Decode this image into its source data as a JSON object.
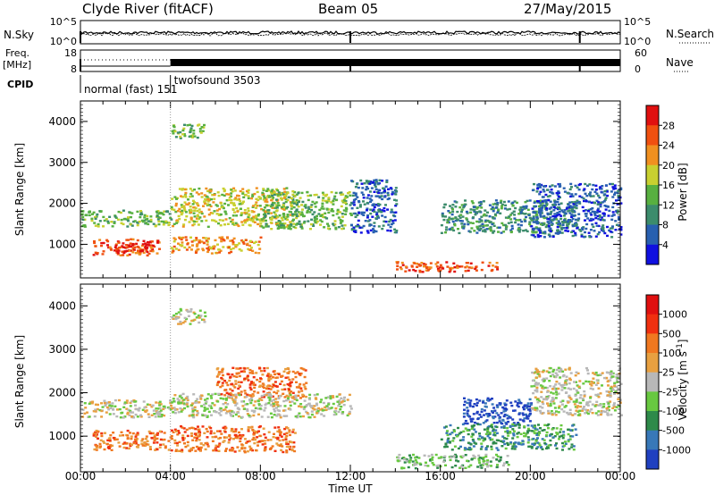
{
  "header": {
    "station": "Clyde River (fitACF)",
    "beam": "Beam 05",
    "date": "27/May/2015"
  },
  "top_panel": {
    "left_label": "N.Sky",
    "right_label": "N.Search",
    "left_ticks": [
      "10^5",
      "10^0"
    ],
    "right_ticks": [
      "10^5",
      "10^0"
    ]
  },
  "freq_panel": {
    "left_label_1": "Freq.",
    "left_label_2": "[MHz]",
    "right_label": "Nave",
    "left_ticks": [
      "18",
      "8"
    ],
    "right_ticks": [
      "60",
      "0"
    ]
  },
  "cpid": {
    "label": "CPID",
    "modes": [
      {
        "name": "normal (fast)  151",
        "start_h": 0
      },
      {
        "name": "twofsound  3503",
        "start_h": 4
      }
    ]
  },
  "axes": {
    "xlabel": "Time UT",
    "x_ticks": [
      "00:00",
      "04:00",
      "08:00",
      "12:00",
      "16:00",
      "20:00",
      "00:00"
    ],
    "ylabel": "Slant Range [km]",
    "y_ticks": [
      "1000",
      "2000",
      "3000",
      "4000"
    ],
    "ylim": [
      180,
      4500
    ],
    "xlim_hours": [
      0,
      24
    ]
  },
  "chart_data": [
    {
      "type": "heatmap",
      "quantity": "Power",
      "colorbar_label": "Power [dB]",
      "colorbar_ticks": [
        "4",
        "8",
        "12",
        "16",
        "20",
        "24",
        "28"
      ],
      "colors": [
        "#1010e0",
        "#2860b0",
        "#3c8c6c",
        "#58b040",
        "#c8d030",
        "#f09020",
        "#f05010",
        "#e01010"
      ],
      "blobs": [
        {
          "t0": 0,
          "t1": 4,
          "r0": 1450,
          "r1": 1850,
          "level": 3
        },
        {
          "t0": 0.5,
          "t1": 3.5,
          "r0": 750,
          "r1": 1150,
          "level": 6
        },
        {
          "t0": 1.5,
          "t1": 3.0,
          "r0": 800,
          "r1": 1050,
          "level": 7
        },
        {
          "t0": 4,
          "t1": 9.5,
          "r0": 1450,
          "r1": 2400,
          "level": 4
        },
        {
          "t0": 4,
          "t1": 8,
          "r0": 800,
          "r1": 1200,
          "level": 5
        },
        {
          "t0": 4,
          "t1": 5.5,
          "r0": 3600,
          "r1": 3950,
          "level": 3
        },
        {
          "t0": 8,
          "t1": 12,
          "r0": 1400,
          "r1": 2300,
          "level": 3
        },
        {
          "t0": 12,
          "t1": 14,
          "r0": 1300,
          "r1": 2600,
          "level": 1
        },
        {
          "t0": 14,
          "t1": 18.5,
          "r0": 350,
          "r1": 600,
          "level": 6
        },
        {
          "t0": 16,
          "t1": 22,
          "r0": 1300,
          "r1": 2100,
          "level": 2
        },
        {
          "t0": 20,
          "t1": 24,
          "r0": 1200,
          "r1": 2500,
          "level": 1
        }
      ]
    },
    {
      "type": "heatmap",
      "quantity": "Velocity",
      "colorbar_label": "Velocity [m s^-1]",
      "colorbar_ticks": [
        "1000",
        "500",
        "100",
        "25",
        "-25",
        "-100",
        "-500",
        "-1000"
      ],
      "colors": [
        "#2040c0",
        "#3878b8",
        "#2e8a4a",
        "#68c840",
        "#b8b8b8",
        "#e8a040",
        "#f07820",
        "#f03010",
        "#e01010"
      ],
      "blobs": [
        {
          "t0": 0,
          "t1": 4,
          "r0": 1450,
          "r1": 1850,
          "level": 4
        },
        {
          "t0": 0.5,
          "t1": 4,
          "r0": 700,
          "r1": 1150,
          "level": 6
        },
        {
          "t0": 4,
          "t1": 9.5,
          "r0": 650,
          "r1": 1250,
          "level": 6
        },
        {
          "t0": 4,
          "t1": 5.5,
          "r0": 3600,
          "r1": 3950,
          "level": 4
        },
        {
          "t0": 6,
          "t1": 10,
          "r0": 1900,
          "r1": 2600,
          "level": 6
        },
        {
          "t0": 4,
          "t1": 12,
          "r0": 1450,
          "r1": 2000,
          "level": 4
        },
        {
          "t0": 14,
          "t1": 19,
          "r0": 280,
          "r1": 600,
          "level": 3
        },
        {
          "t0": 17,
          "t1": 20,
          "r0": 1300,
          "r1": 1900,
          "level": 0
        },
        {
          "t0": 16,
          "t1": 22,
          "r0": 700,
          "r1": 1300,
          "level": 2
        },
        {
          "t0": 20,
          "t1": 24,
          "r0": 1500,
          "r1": 2600,
          "level": 4
        }
      ]
    }
  ]
}
